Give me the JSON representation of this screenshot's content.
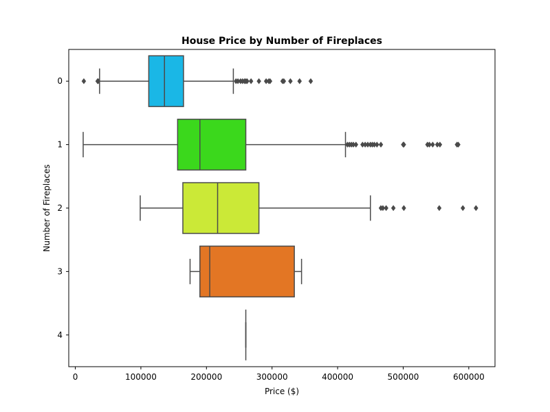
{
  "chart_data": {
    "type": "boxplot",
    "orientation": "horizontal",
    "title": "House Price by Number of Fireplaces",
    "xlabel": "Price ($)",
    "ylabel": "Number of Fireplaces",
    "xlim": [
      -10000,
      640000
    ],
    "xticks": [
      0,
      100000,
      200000,
      300000,
      400000,
      500000,
      600000
    ],
    "xtick_labels": [
      "0",
      "100000",
      "200000",
      "300000",
      "400000",
      "500000",
      "600000"
    ],
    "categories": [
      "0",
      "1",
      "2",
      "3",
      "4"
    ],
    "grid": false,
    "box_edge_color": "#4a4a4a",
    "series": [
      {
        "category": "0",
        "color": "#1ab7e6",
        "whisker_low": 37000,
        "q1": 112000,
        "median": 136000,
        "q3": 165000,
        "whisker_high": 241000,
        "outliers": [
          13000,
          34000,
          35000,
          245000,
          248000,
          252000,
          255000,
          258000,
          260000,
          262000,
          268000,
          280000,
          291000,
          295000,
          297000,
          316000,
          318000,
          328000,
          342000,
          359000
        ]
      },
      {
        "category": "1",
        "color": "#3bd81c",
        "whisker_low": 12000,
        "q1": 156000,
        "median": 190000,
        "q3": 260000,
        "whisker_high": 412000,
        "outliers": [
          415000,
          418000,
          421000,
          424000,
          428000,
          438000,
          442000,
          446000,
          450000,
          453000,
          456000,
          460000,
          466000,
          500000,
          501000,
          537000,
          540000,
          545000,
          552000,
          556000,
          582000,
          584000
        ]
      },
      {
        "category": "2",
        "color": "#cbe937",
        "whisker_low": 99000,
        "q1": 164000,
        "median": 217000,
        "q3": 280000,
        "whisker_high": 450000,
        "outliers": [
          466000,
          469000,
          474000,
          485000,
          501000,
          555000,
          591000,
          611000
        ]
      },
      {
        "category": "3",
        "color": "#e37624",
        "whisker_low": 175000,
        "q1": 190000,
        "median": 205000,
        "q3": 334000,
        "whisker_high": 345000,
        "outliers": []
      },
      {
        "category": "4",
        "color": "#e37624",
        "whisker_low": 260000,
        "q1": 260000,
        "median": 260000,
        "q3": 260000,
        "whisker_high": 260000,
        "outliers": []
      }
    ]
  }
}
